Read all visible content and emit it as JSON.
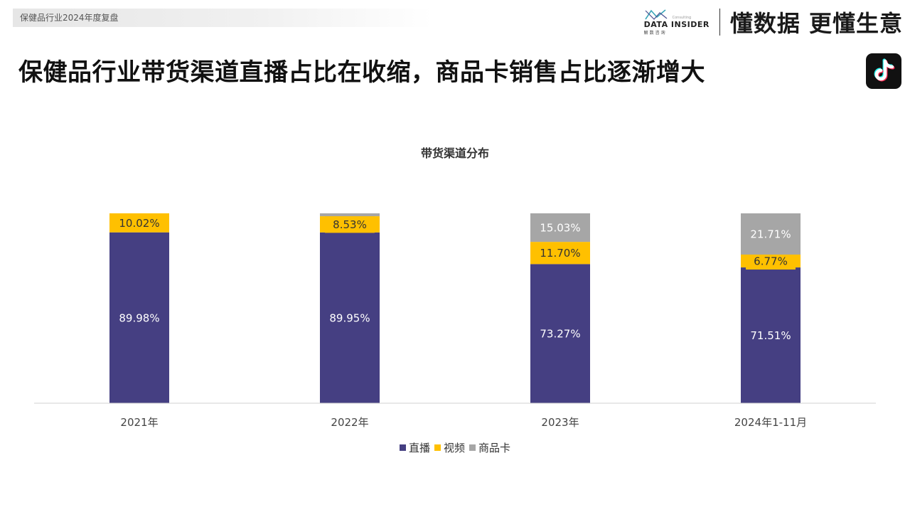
{
  "header": {
    "section_tag": "保健品行业2024年度复盘",
    "brand_name": "DATA INSIDER",
    "brand_sub": "解数咨询",
    "brand_consulting": "Consulting",
    "slogan": "懂数据 更懂生意",
    "headline": "保健品行业带货渠道直播占比在收缩，商品卡销售占比逐渐增大"
  },
  "colors": {
    "live": "#453F82",
    "video": "#FFC000",
    "card": "#A6A6A6",
    "axis": "#D0D0D0"
  },
  "chart_data": {
    "type": "bar",
    "stacked": true,
    "percent_stacked": true,
    "title": "带货渠道分布",
    "categories": [
      "2021年",
      "2022年",
      "2023年",
      "2024年1-11月"
    ],
    "ylim": [
      0,
      100
    ],
    "legend_position": "bottom",
    "series": [
      {
        "name": "直播",
        "values": [
          89.98,
          89.95,
          73.27,
          71.51
        ],
        "labels": [
          "89.98%",
          "89.95%",
          "73.27%",
          "71.51%"
        ]
      },
      {
        "name": "视频",
        "values": [
          10.02,
          8.53,
          11.7,
          6.77
        ],
        "labels": [
          "10.02%",
          "8.53%",
          "11.70%",
          "6.77%"
        ]
      },
      {
        "name": "商品卡",
        "values": [
          0,
          1.52,
          15.03,
          21.71
        ],
        "labels": [
          "",
          "",
          "15.03%",
          "21.71%"
        ]
      }
    ]
  }
}
